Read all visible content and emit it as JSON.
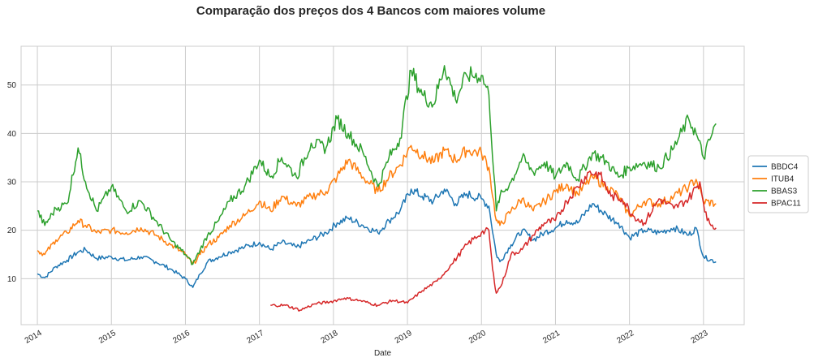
{
  "chart_data": {
    "type": "line",
    "title": "Comparação dos preços dos 4 Bancos com maiores volume",
    "xlabel": "Date",
    "ylabel": "",
    "xlim": [
      2013.78,
      2023.55
    ],
    "ylim": [
      0.5,
      58
    ],
    "x_ticks": [
      "2014",
      "2015",
      "2016",
      "2017",
      "2018",
      "2019",
      "2020",
      "2021",
      "2022",
      "2023"
    ],
    "y_ticks": [
      10,
      20,
      30,
      40,
      50
    ],
    "grid": true,
    "legend_position": "right",
    "series": [
      {
        "name": "BBDC4",
        "color": "#1f77b4",
        "x": [
          2014.0,
          2014.1,
          2014.25,
          2014.4,
          2014.55,
          2014.65,
          2014.8,
          2015.0,
          2015.2,
          2015.4,
          2015.6,
          2015.8,
          2016.0,
          2016.1,
          2016.2,
          2016.3,
          2016.45,
          2016.6,
          2016.8,
          2017.0,
          2017.15,
          2017.3,
          2017.5,
          2017.7,
          2017.9,
          2018.05,
          2018.2,
          2018.4,
          2018.6,
          2018.75,
          2018.9,
          2019.05,
          2019.2,
          2019.35,
          2019.5,
          2019.65,
          2019.8,
          2020.0,
          2020.1,
          2020.2,
          2020.25,
          2020.4,
          2020.55,
          2020.7,
          2020.85,
          2021.0,
          2021.15,
          2021.3,
          2021.5,
          2021.7,
          2021.85,
          2022.0,
          2022.2,
          2022.4,
          2022.6,
          2022.8,
          2022.9,
          2023.0,
          2023.17
        ],
        "y": [
          11,
          10.2,
          12.5,
          13.8,
          15.5,
          16,
          14.2,
          14.5,
          13.8,
          14.5,
          13.5,
          12,
          10,
          8.2,
          11,
          13.5,
          14.5,
          15.5,
          16.5,
          17.5,
          16,
          17.5,
          16.5,
          18,
          19.5,
          21.5,
          22.5,
          21,
          19.5,
          22,
          24,
          28.5,
          27,
          26,
          28.5,
          25.5,
          27.5,
          26.5,
          25,
          15,
          13.5,
          17,
          20,
          18,
          19.5,
          20.5,
          22,
          21.5,
          25.5,
          23,
          21.5,
          18.5,
          20,
          19.5,
          20.5,
          19,
          20.5,
          14.5,
          13.5
        ]
      },
      {
        "name": "ITUB4",
        "color": "#ff7f0e",
        "x": [
          2014.0,
          2014.1,
          2014.25,
          2014.4,
          2014.55,
          2014.65,
          2014.8,
          2015.0,
          2015.2,
          2015.4,
          2015.6,
          2015.8,
          2016.0,
          2016.1,
          2016.2,
          2016.3,
          2016.45,
          2016.6,
          2016.8,
          2017.0,
          2017.15,
          2017.3,
          2017.5,
          2017.7,
          2017.9,
          2018.05,
          2018.2,
          2018.4,
          2018.6,
          2018.75,
          2018.9,
          2019.05,
          2019.2,
          2019.35,
          2019.5,
          2019.65,
          2019.8,
          2020.0,
          2020.1,
          2020.2,
          2020.25,
          2020.4,
          2020.55,
          2020.7,
          2020.85,
          2021.0,
          2021.15,
          2021.3,
          2021.5,
          2021.7,
          2021.85,
          2022.0,
          2022.2,
          2022.4,
          2022.6,
          2022.8,
          2022.9,
          2023.0,
          2023.17
        ],
        "y": [
          15.8,
          15,
          18,
          19.5,
          22,
          21,
          19.5,
          20,
          19.5,
          20.5,
          19,
          17,
          15,
          13,
          15,
          17,
          18.5,
          21,
          23,
          26,
          24,
          27,
          25,
          27,
          28,
          31,
          34.5,
          31,
          28,
          31,
          33.5,
          37.5,
          35.5,
          34,
          36.5,
          34.5,
          36.5,
          36,
          33,
          22,
          21,
          24,
          26.5,
          24,
          26,
          28,
          29.5,
          27.5,
          31,
          29,
          27,
          23,
          26,
          25.5,
          27,
          29,
          30.5,
          26,
          25.5
        ]
      },
      {
        "name": "BBAS3",
        "color": "#2ca02c",
        "x": [
          2014.0,
          2014.1,
          2014.25,
          2014.4,
          2014.55,
          2014.65,
          2014.8,
          2015.0,
          2015.2,
          2015.4,
          2015.6,
          2015.8,
          2016.0,
          2016.1,
          2016.2,
          2016.3,
          2016.45,
          2016.6,
          2016.8,
          2017.0,
          2017.15,
          2017.3,
          2017.5,
          2017.7,
          2017.9,
          2018.05,
          2018.2,
          2018.4,
          2018.6,
          2018.75,
          2018.9,
          2019.05,
          2019.2,
          2019.35,
          2019.5,
          2019.65,
          2019.8,
          2020.0,
          2020.1,
          2020.2,
          2020.25,
          2020.4,
          2020.55,
          2020.7,
          2020.85,
          2021.0,
          2021.15,
          2021.3,
          2021.5,
          2021.7,
          2021.85,
          2022.0,
          2022.2,
          2022.4,
          2022.6,
          2022.8,
          2022.9,
          2023.0,
          2023.17
        ],
        "y": [
          24,
          21,
          24.5,
          25.5,
          37,
          30,
          24,
          29,
          24,
          26,
          22,
          18,
          15,
          13,
          16,
          19,
          22,
          26,
          29,
          34.5,
          31,
          35,
          31,
          38,
          37,
          43,
          40,
          36,
          29,
          35,
          39,
          53,
          48,
          46,
          54,
          47,
          52,
          52,
          48,
          24,
          27,
          30,
          35,
          32,
          34,
          31,
          34,
          30.5,
          36,
          34,
          31,
          33,
          34,
          33,
          37,
          43,
          40,
          35,
          42
        ]
      },
      {
        "name": "BPAC11",
        "color": "#d62728",
        "x": [
          2017.15,
          2017.35,
          2017.55,
          2017.75,
          2017.95,
          2018.15,
          2018.35,
          2018.6,
          2018.8,
          2019.0,
          2019.2,
          2019.4,
          2019.6,
          2019.8,
          2020.0,
          2020.1,
          2020.15,
          2020.2,
          2020.28,
          2020.4,
          2020.55,
          2020.7,
          2020.85,
          2021.0,
          2021.15,
          2021.3,
          2021.45,
          2021.6,
          2021.75,
          2021.9,
          2022.05,
          2022.2,
          2022.4,
          2022.6,
          2022.8,
          2022.95,
          2023.05,
          2023.17
        ],
        "y": [
          4.5,
          4.5,
          3.5,
          4.8,
          5.2,
          6,
          5.5,
          4.5,
          5.5,
          5,
          7.5,
          9.5,
          13,
          17,
          19.5,
          20,
          12,
          7,
          9,
          15,
          16,
          19,
          21.5,
          22,
          26,
          29,
          32,
          31.5,
          27,
          26.5,
          23,
          21.5,
          26.5,
          24.5,
          26.5,
          30,
          22,
          20.5
        ]
      }
    ]
  }
}
